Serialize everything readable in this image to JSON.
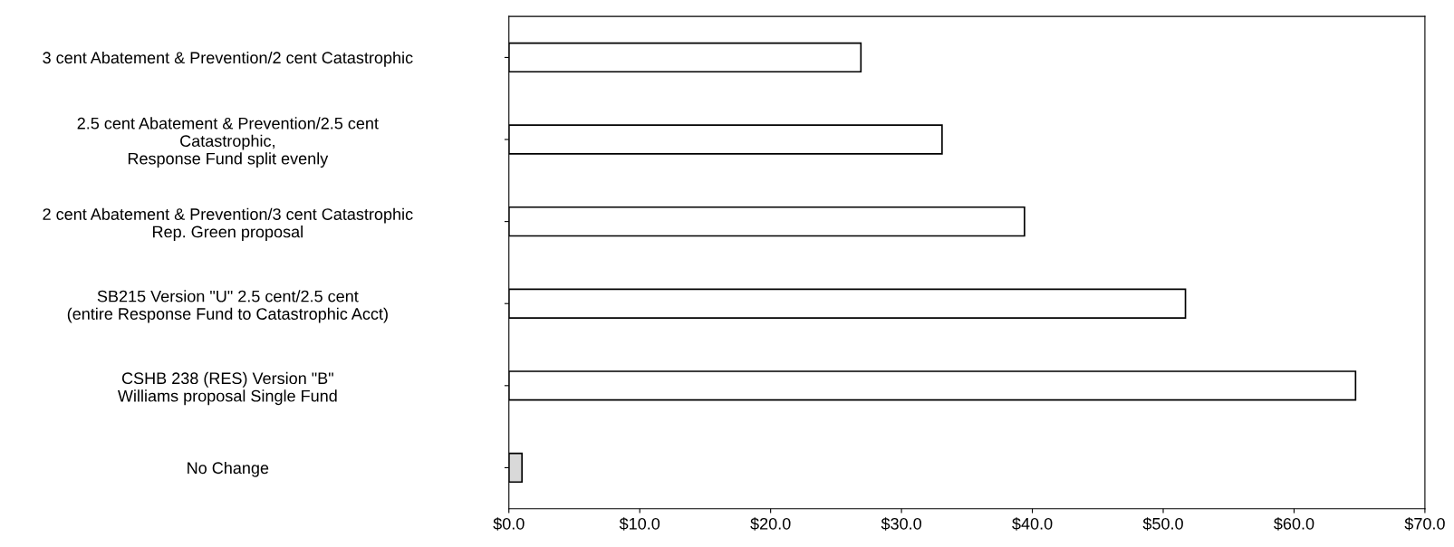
{
  "chart_data": {
    "type": "bar",
    "orientation": "horizontal",
    "categories": [
      "3 cent Abatement & Prevention/2 cent Catastrophic",
      "2.5 cent Abatement & Prevention/2.5 cent\nCatastrophic,\nResponse Fund split evenly",
      "2 cent Abatement & Prevention/3 cent Catastrophic\nRep. Green proposal",
      "SB215 Version \"U\" 2.5 cent/2.5 cent\n(entire Response Fund to Catastrophic Acct)",
      "CSHB 238 (RES) Version \"B\"\nWilliams proposal Single Fund",
      "No Change"
    ],
    "values": [
      26.9,
      33.1,
      39.4,
      51.7,
      64.7,
      1.0
    ],
    "colors": [
      "#ffffff",
      "#ffffff",
      "#ffffff",
      "#ffffff",
      "#ffffff",
      "#d9d9d9"
    ],
    "xlim": [
      0,
      70
    ],
    "xticks": [
      {
        "value": 0,
        "label": "$0.0"
      },
      {
        "value": 10,
        "label": "$10.0"
      },
      {
        "value": 20,
        "label": "$20.0"
      },
      {
        "value": 30,
        "label": "$30.0"
      },
      {
        "value": 40,
        "label": "$40.0"
      },
      {
        "value": 50,
        "label": "$50.0"
      },
      {
        "value": 60,
        "label": "$60.0"
      },
      {
        "value": 70,
        "label": "$70.0"
      }
    ],
    "grid": false
  }
}
